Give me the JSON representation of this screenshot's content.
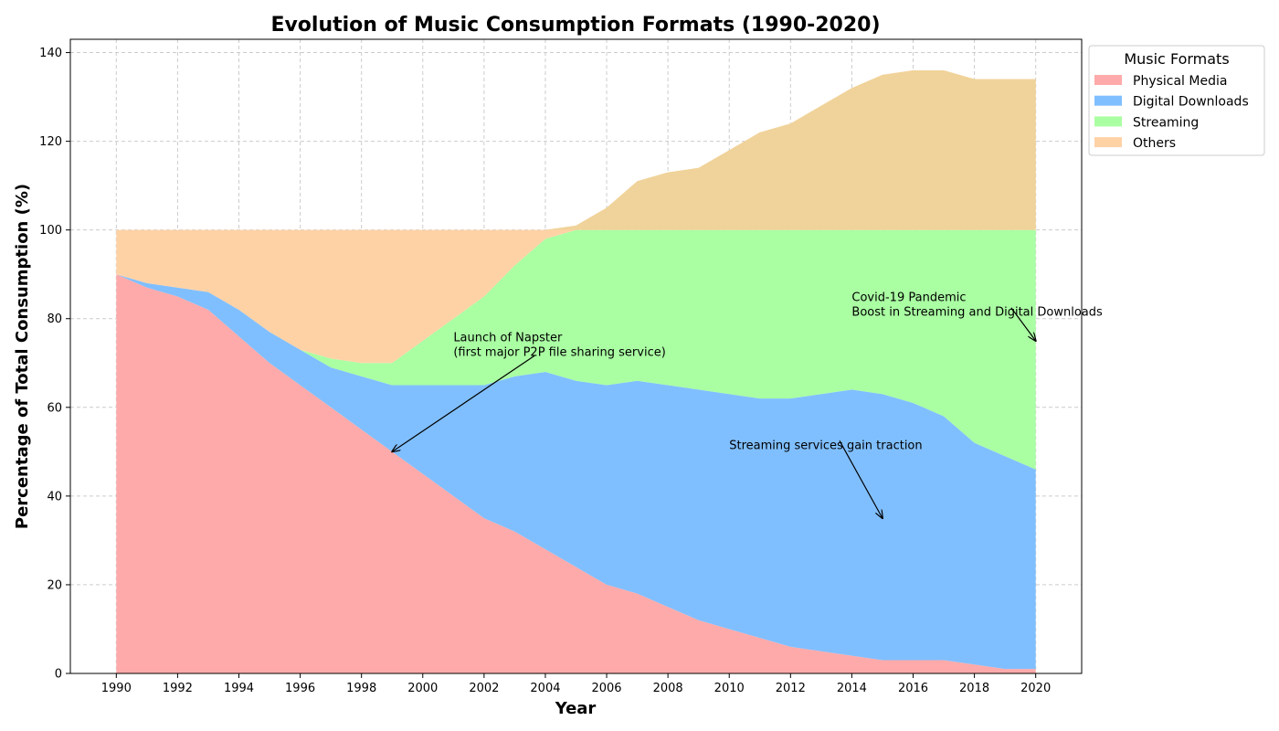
{
  "chart_data": {
    "type": "area",
    "stacked": true,
    "title": "Evolution of Music Consumption Formats (1990-2020)",
    "xlabel": "Year",
    "ylabel": "Percentage of Total Consumption (%)",
    "xlim": [
      1990,
      2020
    ],
    "ylim": [
      0,
      143
    ],
    "xticks": [
      "1990",
      "1992",
      "1994",
      "1996",
      "1998",
      "2000",
      "2002",
      "2004",
      "2006",
      "2008",
      "2010",
      "2012",
      "2014",
      "2016",
      "2018",
      "2020"
    ],
    "yticks": [
      "0",
      "20",
      "40",
      "60",
      "80",
      "100",
      "120",
      "140"
    ],
    "grid": true,
    "legend_title": "Music Formats",
    "legend_position": "outside-top-right",
    "x": [
      1990,
      1991,
      1992,
      1993,
      1994,
      1995,
      1996,
      1997,
      1998,
      1999,
      2000,
      2001,
      2002,
      2003,
      2004,
      2005,
      2006,
      2007,
      2008,
      2009,
      2010,
      2011,
      2012,
      2013,
      2014,
      2015,
      2016,
      2017,
      2018,
      2019,
      2020
    ],
    "series": [
      {
        "name": "Physical Media",
        "color": "#ffaaaa",
        "values": [
          90,
          87,
          85,
          82,
          76,
          70,
          65,
          60,
          55,
          50,
          45,
          40,
          35,
          32,
          28,
          24,
          20,
          18,
          15,
          12,
          10,
          8,
          6,
          5,
          4,
          3,
          3,
          3,
          2,
          1,
          1
        ]
      },
      {
        "name": "Digital Downloads",
        "color": "#80bfff",
        "values": [
          0,
          1,
          2,
          4,
          6,
          7,
          8,
          9,
          12,
          15,
          20,
          25,
          30,
          35,
          40,
          42,
          45,
          48,
          50,
          52,
          53,
          54,
          56,
          58,
          60,
          60,
          58,
          55,
          50,
          48,
          45
        ]
      },
      {
        "name": "Streaming",
        "color": "#aaffa3",
        "values": [
          0,
          0,
          0,
          0,
          0,
          0,
          0,
          2,
          3,
          5,
          10,
          15,
          20,
          25,
          30,
          34,
          35,
          34,
          35,
          36,
          37,
          38,
          38,
          37,
          36,
          37,
          39,
          42,
          48,
          51,
          54
        ]
      },
      {
        "name": "Others",
        "color": "#ffd2a6",
        "values": [
          10,
          12,
          13,
          14,
          18,
          23,
          27,
          29,
          30,
          30,
          25,
          20,
          15,
          8,
          2,
          1,
          5,
          11,
          13,
          14,
          18,
          22,
          24,
          28,
          32,
          35,
          36,
          36,
          34,
          34,
          34
        ]
      }
    ],
    "annotations": [
      {
        "lines": [
          "Launch of Napster",
          "(first major P2P file sharing service)"
        ],
        "text_x": 2001,
        "text_y": 71,
        "arrow_x": 1999,
        "arrow_y": 50
      },
      {
        "lines": [
          "Streaming services gain traction"
        ],
        "text_x": 2010,
        "text_y": 50,
        "arrow_x": 2015,
        "arrow_y": 35
      },
      {
        "lines": [
          "Covid-19 Pandemic",
          "Boost in Streaming and Digital Downloads"
        ],
        "text_x": 2014,
        "text_y": 80,
        "arrow_x": 2020,
        "arrow_y": 75
      }
    ]
  }
}
